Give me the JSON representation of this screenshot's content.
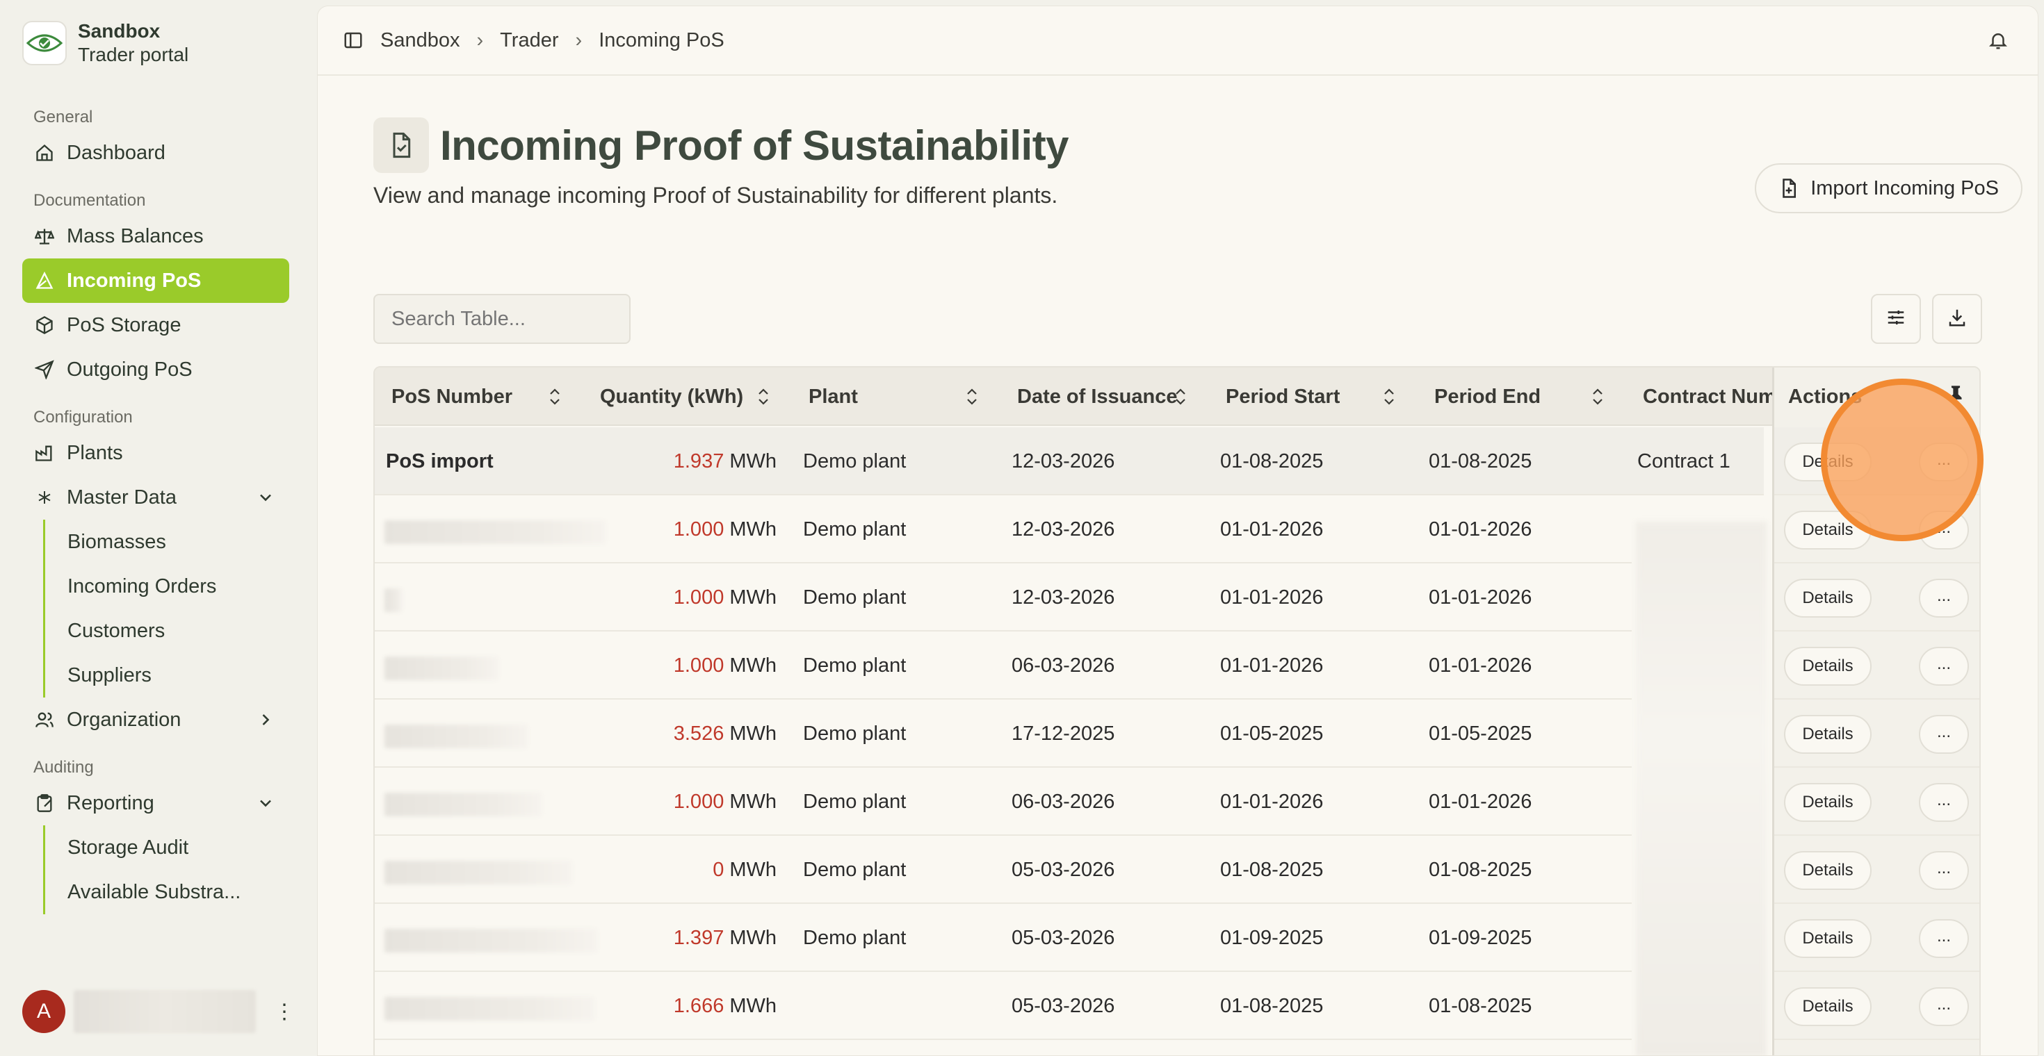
{
  "brand": {
    "title": "Sandbox",
    "subtitle": "Trader portal"
  },
  "sidebar": {
    "sections": [
      {
        "label": "General"
      },
      {
        "label": "Documentation"
      },
      {
        "label": "Configuration"
      },
      {
        "label": "Auditing"
      }
    ],
    "items": {
      "dashboard": "Dashboard",
      "mass_balances": "Mass Balances",
      "incoming_pos": "Incoming PoS",
      "pos_storage": "PoS Storage",
      "outgoing_pos": "Outgoing PoS",
      "plants": "Plants",
      "master_data": "Master Data",
      "biomasses": "Biomasses",
      "incoming_orders": "Incoming Orders",
      "customers": "Customers",
      "suppliers": "Suppliers",
      "organization": "Organization",
      "reporting": "Reporting",
      "storage_audit": "Storage Audit",
      "available_substrates": "Available Substra..."
    },
    "user": {
      "initial": "A"
    }
  },
  "breadcrumb": [
    "Sandbox",
    "Trader",
    "Incoming PoS"
  ],
  "page": {
    "title": "Incoming Proof of Sustainability",
    "description": "View and manage incoming Proof of Sustainability for different plants.",
    "import_button": "Import Incoming PoS",
    "search_placeholder": "Search Table..."
  },
  "table": {
    "headers": {
      "pos_number": "PoS Number",
      "quantity": "Quantity (kWh)",
      "plant": "Plant",
      "date_of_issuance": "Date of Issuance",
      "period_start": "Period Start",
      "period_end": "Period End",
      "contract_number": "Contract Num",
      "actions": "Actions"
    },
    "unit": "MWh",
    "details_label": "Details",
    "more_label": "...",
    "rows": [
      {
        "pos_number": "PoS import",
        "quantity": "1.937",
        "plant": "Demo plant",
        "issuance": "12-03-2026",
        "start": "01-08-2025",
        "end": "01-08-2025",
        "contract": "Contract 1"
      },
      {
        "pos_number": "",
        "quantity": "1.000",
        "plant": "Demo plant",
        "issuance": "12-03-2026",
        "start": "01-01-2026",
        "end": "01-01-2026",
        "contract": ""
      },
      {
        "pos_number": "",
        "quantity": "1.000",
        "plant": "Demo plant",
        "issuance": "12-03-2026",
        "start": "01-01-2026",
        "end": "01-01-2026",
        "contract": ""
      },
      {
        "pos_number": "",
        "quantity": "1.000",
        "plant": "Demo plant",
        "issuance": "06-03-2026",
        "start": "01-01-2026",
        "end": "01-01-2026",
        "contract": ""
      },
      {
        "pos_number": "",
        "quantity": "3.526",
        "plant": "Demo plant",
        "issuance": "17-12-2025",
        "start": "01-05-2025",
        "end": "01-05-2025",
        "contract": ""
      },
      {
        "pos_number": "",
        "quantity": "1.000",
        "plant": "Demo plant",
        "issuance": "06-03-2026",
        "start": "01-01-2026",
        "end": "01-01-2026",
        "contract": ""
      },
      {
        "pos_number": "",
        "quantity": "0",
        "plant": "Demo plant",
        "issuance": "05-03-2026",
        "start": "01-08-2025",
        "end": "01-08-2025",
        "contract": ""
      },
      {
        "pos_number": "",
        "quantity": "1.397",
        "plant": "Demo plant",
        "issuance": "05-03-2026",
        "start": "01-09-2025",
        "end": "01-09-2025",
        "contract": ""
      },
      {
        "pos_number": "",
        "quantity": "1.666",
        "plant": "",
        "issuance": "05-03-2026",
        "start": "01-08-2025",
        "end": "01-08-2025",
        "contract": ""
      }
    ]
  },
  "colors": {
    "accent": "#9acb2a",
    "quantity": "#c0392b",
    "avatar": "#a82a1e",
    "cursor": "#f28a32"
  }
}
